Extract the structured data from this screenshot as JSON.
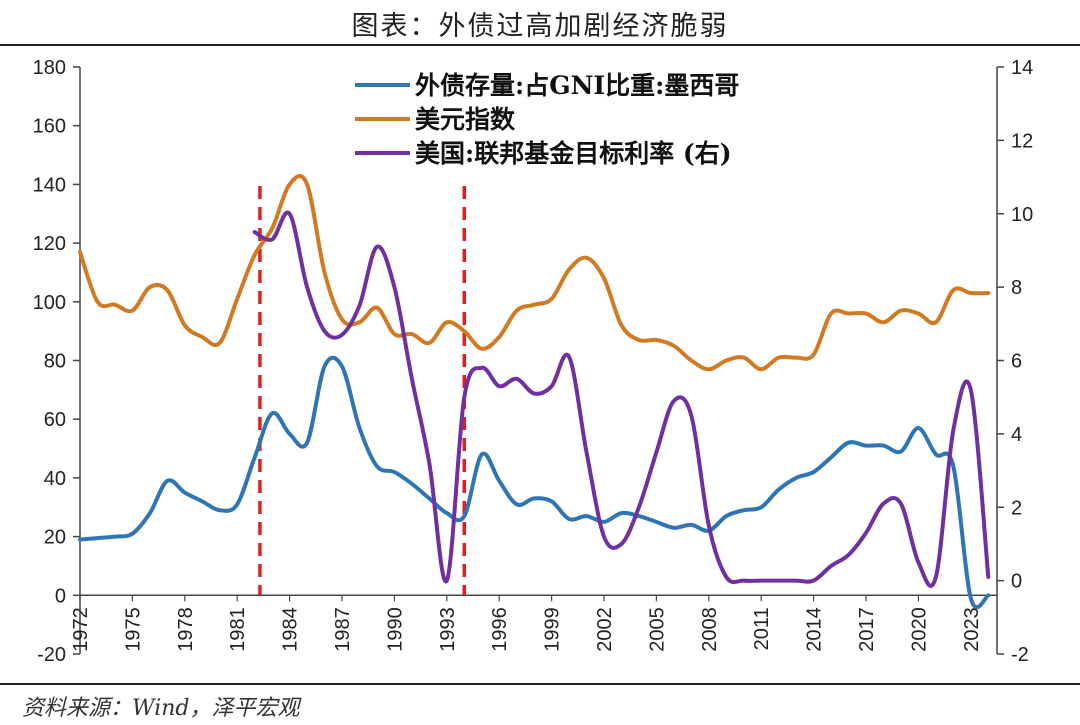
{
  "title": "图表：外债过高加剧经济脆弱",
  "source": "资料来源：Wind，泽平宏观",
  "colors": {
    "debt": "#2E75B6",
    "dxy": "#D17A22",
    "rate": "#7030A0",
    "marker": "#E02020",
    "axis": "#444444"
  },
  "chart_data": {
    "type": "line",
    "x_ticks": [
      "1972",
      "1975",
      "1978",
      "1981",
      "1984",
      "1987",
      "1990",
      "1993",
      "1996",
      "1999",
      "2002",
      "2005",
      "2008",
      "2011",
      "2014",
      "2017",
      "2020",
      "2023"
    ],
    "y_left_ticks": [
      "180",
      "160",
      "140",
      "120",
      "100",
      "80",
      "60",
      "40",
      "20",
      "0",
      "-20"
    ],
    "y_right_ticks": [
      "14",
      "12",
      "10",
      "8",
      "6",
      "4",
      "2",
      "0",
      "-2"
    ],
    "ylim_left": [
      -20,
      180
    ],
    "ylim_right": [
      -2,
      14
    ],
    "xlim": [
      1972,
      2024.5
    ],
    "vertical_markers": [
      1982.3,
      1994.0
    ],
    "legend": [
      {
        "label": "外债存量:占GNI比重:墨西哥",
        "color_key": "debt"
      },
      {
        "label": "美元指数",
        "color_key": "dxy"
      },
      {
        "label": "美国:联邦基金目标利率 (右)",
        "color_key": "rate"
      }
    ],
    "series": [
      {
        "name": "外债存量:占GNI比重:墨西哥",
        "axis": "left",
        "color_key": "debt",
        "points": [
          [
            1972,
            19
          ],
          [
            1973,
            19.5
          ],
          [
            1974,
            20
          ],
          [
            1975,
            21
          ],
          [
            1976,
            28
          ],
          [
            1977,
            39
          ],
          [
            1978,
            35
          ],
          [
            1979,
            32
          ],
          [
            1980,
            29
          ],
          [
            1981,
            31
          ],
          [
            1982,
            47
          ],
          [
            1983,
            62
          ],
          [
            1984,
            55
          ],
          [
            1985,
            52
          ],
          [
            1986,
            78
          ],
          [
            1987,
            78
          ],
          [
            1988,
            57
          ],
          [
            1989,
            44
          ],
          [
            1990,
            42
          ],
          [
            1991,
            38
          ],
          [
            1992,
            33
          ],
          [
            1993,
            28
          ],
          [
            1994,
            27
          ],
          [
            1995,
            48
          ],
          [
            1996,
            39
          ],
          [
            1997,
            31
          ],
          [
            1998,
            33
          ],
          [
            1999,
            32
          ],
          [
            2000,
            26
          ],
          [
            2001,
            27
          ],
          [
            2002,
            25
          ],
          [
            2003,
            28
          ],
          [
            2004,
            27
          ],
          [
            2005,
            25
          ],
          [
            2006,
            23
          ],
          [
            2007,
            24
          ],
          [
            2008,
            22
          ],
          [
            2009,
            27
          ],
          [
            2010,
            29
          ],
          [
            2011,
            30
          ],
          [
            2012,
            36
          ],
          [
            2013,
            40
          ],
          [
            2014,
            42
          ],
          [
            2015,
            47
          ],
          [
            2016,
            52
          ],
          [
            2017,
            51
          ],
          [
            2018,
            51
          ],
          [
            2019,
            49
          ],
          [
            2020,
            57
          ],
          [
            2021,
            48
          ],
          [
            2022,
            44
          ],
          [
            2023,
            -1
          ],
          [
            2024,
            0
          ]
        ]
      },
      {
        "name": "美元指数",
        "axis": "left",
        "color_key": "dxy",
        "points": [
          [
            1972,
            117
          ],
          [
            1973,
            100
          ],
          [
            1974,
            99
          ],
          [
            1975,
            97
          ],
          [
            1976,
            105
          ],
          [
            1977,
            104
          ],
          [
            1978,
            92
          ],
          [
            1979,
            88
          ],
          [
            1980,
            86
          ],
          [
            1981,
            101
          ],
          [
            1982,
            116
          ],
          [
            1983,
            125
          ],
          [
            1984,
            140
          ],
          [
            1985,
            140
          ],
          [
            1986,
            110
          ],
          [
            1987,
            94
          ],
          [
            1988,
            93
          ],
          [
            1989,
            98
          ],
          [
            1990,
            89
          ],
          [
            1991,
            89
          ],
          [
            1992,
            86
          ],
          [
            1993,
            93
          ],
          [
            1994,
            90
          ],
          [
            1995,
            84
          ],
          [
            1996,
            88
          ],
          [
            1997,
            97
          ],
          [
            1998,
            99
          ],
          [
            1999,
            101
          ],
          [
            2000,
            111
          ],
          [
            2001,
            115
          ],
          [
            2002,
            108
          ],
          [
            2003,
            92
          ],
          [
            2004,
            87
          ],
          [
            2005,
            87
          ],
          [
            2006,
            85
          ],
          [
            2007,
            80
          ],
          [
            2008,
            77
          ],
          [
            2009,
            80
          ],
          [
            2010,
            81
          ],
          [
            2011,
            77
          ],
          [
            2012,
            81
          ],
          [
            2013,
            81
          ],
          [
            2014,
            82
          ],
          [
            2015,
            96
          ],
          [
            2016,
            96
          ],
          [
            2017,
            96
          ],
          [
            2018,
            93
          ],
          [
            2019,
            97
          ],
          [
            2020,
            96
          ],
          [
            2021,
            93
          ],
          [
            2022,
            104
          ],
          [
            2023,
            103
          ],
          [
            2024,
            103
          ]
        ]
      },
      {
        "name": "美国:联邦基金目标利率 (右)",
        "axis": "right",
        "color_key": "rate",
        "points": [
          [
            1982,
            9.5
          ],
          [
            1983,
            9.3
          ],
          [
            1984,
            10
          ],
          [
            1985,
            8
          ],
          [
            1986,
            6.8
          ],
          [
            1987,
            6.7
          ],
          [
            1988,
            7.5
          ],
          [
            1989,
            9.1
          ],
          [
            1990,
            8
          ],
          [
            1991,
            5.5
          ],
          [
            1992,
            3.2
          ],
          [
            1993,
            0
          ],
          [
            1994,
            5
          ],
          [
            1995,
            5.8
          ],
          [
            1996,
            5.3
          ],
          [
            1997,
            5.5
          ],
          [
            1998,
            5.1
          ],
          [
            1999,
            5.3
          ],
          [
            2000,
            6.1
          ],
          [
            2001,
            3.5
          ],
          [
            2002,
            1.2
          ],
          [
            2003,
            1
          ],
          [
            2004,
            2
          ],
          [
            2005,
            3.5
          ],
          [
            2006,
            4.9
          ],
          [
            2007,
            4.5
          ],
          [
            2008,
            1.5
          ],
          [
            2009,
            0.1
          ],
          [
            2010,
            0
          ],
          [
            2011,
            0
          ],
          [
            2012,
            0
          ],
          [
            2013,
            0
          ],
          [
            2014,
            0
          ],
          [
            2015,
            0.4
          ],
          [
            2016,
            0.7
          ],
          [
            2017,
            1.3
          ],
          [
            2018,
            2.1
          ],
          [
            2019,
            2.1
          ],
          [
            2020,
            0.5
          ],
          [
            2021,
            0.1
          ],
          [
            2022,
            4.1
          ],
          [
            2023,
            5.2
          ],
          [
            2024,
            0.1
          ]
        ]
      }
    ]
  }
}
